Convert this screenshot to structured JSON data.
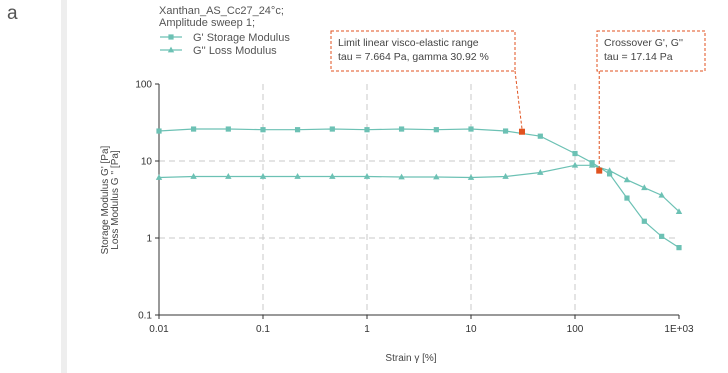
{
  "panel_label": "a",
  "chart_data": {
    "type": "line",
    "title": [
      "Xanthan_AS_Cc27_24°c;",
      "Amplitude sweep 1;"
    ],
    "xlabel": "Strain γ [%]",
    "ylabel": [
      "Storage Modulus G' [Pa]",
      "Loss Modulus G '' [Pa]"
    ],
    "xscale": "log",
    "yscale": "log",
    "xlim": [
      0.01,
      1000
    ],
    "ylim": [
      0.1,
      100
    ],
    "x_ticks": [
      0.01,
      0.1,
      1,
      10,
      100,
      1000
    ],
    "x_tick_labels": [
      "0.01",
      "0.1",
      "1",
      "10",
      "100",
      "1E+03"
    ],
    "y_ticks": [
      0.1,
      1,
      10,
      100
    ],
    "y_tick_labels": [
      "0.1",
      "1",
      "10",
      "100"
    ],
    "grid": true,
    "legend_position": "top-left",
    "series": [
      {
        "name": "G'  Storage Modulus",
        "marker": "square",
        "color": "#6cc1b4",
        "x": [
          0.01,
          0.0215,
          0.0464,
          0.1,
          0.215,
          0.464,
          1,
          2.15,
          4.64,
          10,
          21.5,
          46.4,
          100,
          146,
          215,
          316,
          464,
          681,
          1000
        ],
        "y": [
          24.5,
          26,
          26,
          25.5,
          25.5,
          26,
          25.5,
          26,
          25.5,
          26,
          24.5,
          21,
          12.5,
          9.5,
          6.8,
          3.3,
          1.65,
          1.05,
          0.75
        ]
      },
      {
        "name": "G''  Loss Modulus",
        "marker": "triangle",
        "color": "#6cc1b4",
        "x": [
          0.01,
          0.0215,
          0.0464,
          0.1,
          0.215,
          0.464,
          1,
          2.15,
          4.64,
          10,
          21.5,
          46.4,
          100,
          146,
          215,
          316,
          464,
          681,
          1000
        ],
        "y": [
          6.1,
          6.3,
          6.3,
          6.3,
          6.3,
          6.3,
          6.3,
          6.2,
          6.2,
          6.1,
          6.3,
          7.1,
          8.8,
          8.8,
          7.5,
          5.7,
          4.5,
          3.6,
          2.2
        ]
      }
    ],
    "highlight_points": [
      {
        "x": 30.92,
        "y": 24,
        "color": "#e0521f"
      },
      {
        "x": 171,
        "y": 7.5,
        "color": "#e0521f"
      }
    ],
    "annotations": [
      {
        "lines": [
          "Limit linear visco-elastic range",
          "tau = 7.664 Pa, gamma 30.92 %"
        ],
        "target_x": 30.92,
        "target_y": 24,
        "color": "#e0521f"
      },
      {
        "lines": [
          "Crossover  G', G''",
          "tau = 17.14 Pa"
        ],
        "target_x": 171,
        "target_y": 7.5,
        "color": "#e0521f"
      }
    ]
  }
}
